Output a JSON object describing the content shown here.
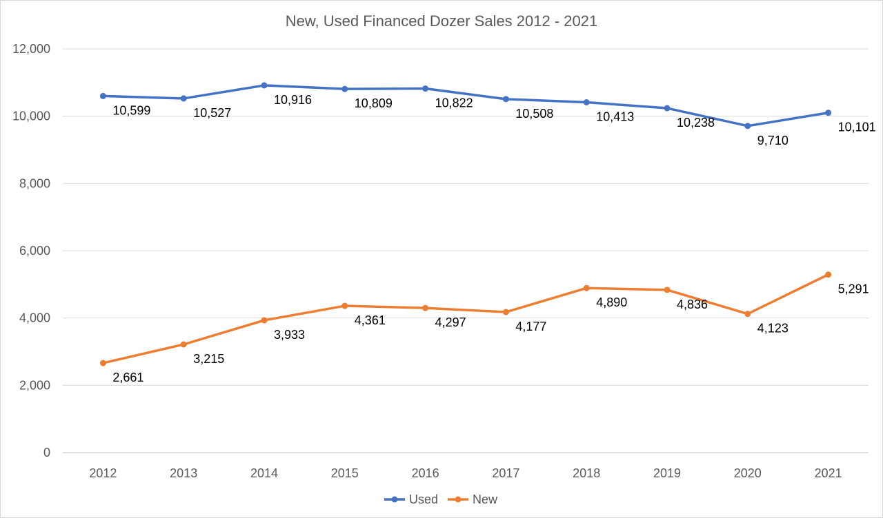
{
  "chart_data": {
    "type": "line",
    "title": "New, Used Financed Dozer Sales 2012 - 2021",
    "xlabel": "",
    "ylabel": "",
    "categories": [
      "2012",
      "2013",
      "2014",
      "2015",
      "2016",
      "2017",
      "2018",
      "2019",
      "2020",
      "2021"
    ],
    "ylim": [
      0,
      12000
    ],
    "yticks": [
      "0",
      "2,000",
      "4,000",
      "6,000",
      "8,000",
      "10,000",
      "12,000"
    ],
    "grid": true,
    "legend": "bottom",
    "series": [
      {
        "name": "Used",
        "color": "#4472c4",
        "values": [
          10599,
          10527,
          10916,
          10809,
          10822,
          10508,
          10413,
          10238,
          9710,
          10101
        ],
        "labels": [
          "10,599",
          "10,527",
          "10,916",
          "10,809",
          "10,822",
          "10,508",
          "10,413",
          "10,238",
          "9,710",
          "10,101"
        ]
      },
      {
        "name": "New",
        "color": "#ed7d31",
        "values": [
          2661,
          3215,
          3933,
          4361,
          4297,
          4177,
          4890,
          4836,
          4123,
          5291
        ],
        "labels": [
          "2,661",
          "3,215",
          "3,933",
          "4,361",
          "4,297",
          "4,177",
          "4,890",
          "4,836",
          "4,123",
          "5,291"
        ]
      }
    ]
  }
}
